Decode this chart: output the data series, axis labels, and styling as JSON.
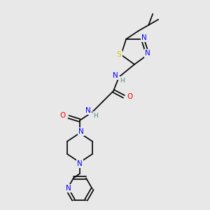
{
  "bg_color": "#e8e8e8",
  "atom_colors": {
    "N": "#0000FF",
    "O": "#FF0000",
    "S": "#CCCC00",
    "C": "#000000",
    "H": "#4a8a8a"
  },
  "bond_color": "#000000",
  "font_size": 7.5,
  "line_width": 1.2
}
